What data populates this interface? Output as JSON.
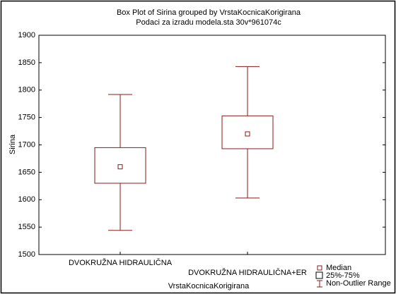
{
  "chart_data": {
    "type": "box",
    "title": [
      "Box Plot of Sirina grouped by  VrstaKocnicaKorigirana",
      "Podaci za izradu modela.sta 30v*961074c"
    ],
    "x_label": "VrstaKocnicaKorigirana",
    "y_label": "Sirina",
    "categories": [
      "DVOKRUŽNA HIDRAULIČNA",
      "DVOKRUŽNA HIDRAULIČNA+ER"
    ],
    "boxes": [
      {
        "min": 1544,
        "q1": 1630,
        "median": 1660,
        "q3": 1695,
        "max": 1792
      },
      {
        "min": 1603,
        "q1": 1693,
        "median": 1720,
        "q3": 1753,
        "max": 1843
      }
    ],
    "color": "#8b1a1a",
    "ylim": [
      1500,
      1900
    ],
    "yticks": [
      1500,
      1550,
      1600,
      1650,
      1700,
      1750,
      1800,
      1850,
      1900
    ],
    "grid": false,
    "legend": [
      "Median",
      "25%-75%",
      "Non-Outlier Range"
    ],
    "legend_position": "bottom-right"
  }
}
